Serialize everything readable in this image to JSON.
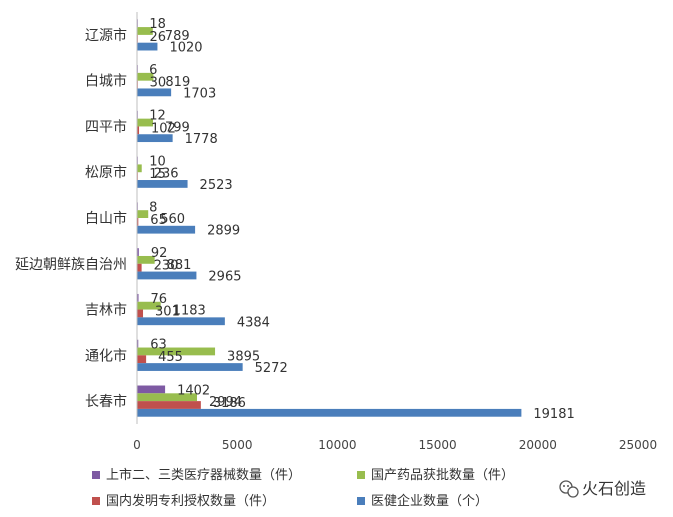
{
  "chart_data": {
    "type": "bar",
    "orientation": "horizontal",
    "categories": [
      "辽源市",
      "白城市",
      "四平市",
      "松原市",
      "白山市",
      "延边朝鲜族自治州",
      "吉林市",
      "通化市",
      "长春市"
    ],
    "series": [
      {
        "name": "上市二、三类医疗器械数量（件）",
        "color": "#7e5aa3",
        "values": [
          18,
          6,
          12,
          10,
          8,
          92,
          76,
          63,
          1402
        ]
      },
      {
        "name": "国产药品获批数量（件）",
        "color": "#98bd4e",
        "values": [
          789,
          819,
          799,
          236,
          560,
          881,
          1183,
          3895,
          2994
        ]
      },
      {
        "name": "国内发明专利授权数量（件）",
        "color": "#c0504d",
        "values": [
          26,
          30,
          102,
          15,
          65,
          230,
          301,
          455,
          3186
        ]
      },
      {
        "name": "医健企业数量（个）",
        "color": "#4a7ebb",
        "values": [
          1020,
          1703,
          1778,
          2523,
          2899,
          2965,
          4384,
          5272,
          19181
        ]
      }
    ],
    "xlim": [
      0,
      25000
    ],
    "xticks": [
      0,
      5000,
      10000,
      15000,
      20000,
      25000
    ],
    "grid": false,
    "legend_position": "bottom"
  },
  "watermark": {
    "icon": "wechat-icon",
    "text": "火石创造"
  }
}
